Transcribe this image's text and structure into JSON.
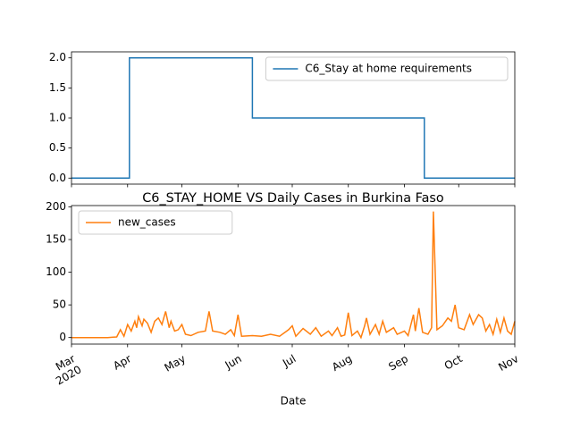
{
  "chart_data": [
    {
      "type": "line",
      "legend": "upper right",
      "xlim": [
        0,
        245
      ],
      "x": [
        0,
        32,
        32,
        100,
        100,
        195,
        195,
        245
      ],
      "ylim": [
        -0.1,
        2.1
      ],
      "yticks": [
        {
          "value": 0,
          "label": "0.0"
        },
        {
          "value": 0.5,
          "label": "0.5"
        },
        {
          "value": 1,
          "label": "1.0"
        },
        {
          "value": 1.5,
          "label": "1.5"
        },
        {
          "value": 2,
          "label": "2.0"
        }
      ],
      "series": [
        {
          "name": "C6_Stay at home requirements",
          "color": "#1f77b4",
          "values": [
            0,
            0,
            2,
            2,
            1,
            1,
            0,
            0
          ]
        }
      ]
    },
    {
      "type": "line",
      "legend": "upper left",
      "title": "C6_STAY_HOME VS Daily Cases in Burkina Faso",
      "xlabel": "Date",
      "xlim": [
        0,
        245
      ],
      "xticks": [
        {
          "value": 0,
          "label": "Mar\n2020"
        },
        {
          "value": 31,
          "label": "Apr"
        },
        {
          "value": 61,
          "label": "May"
        },
        {
          "value": 92,
          "label": "Jun"
        },
        {
          "value": 122,
          "label": "Jul"
        },
        {
          "value": 153,
          "label": "Aug"
        },
        {
          "value": 184,
          "label": "Sep"
        },
        {
          "value": 214,
          "label": "Oct"
        },
        {
          "value": 245,
          "label": "Nov"
        }
      ],
      "x": [
        0,
        10,
        20,
        25,
        27,
        29,
        31,
        33,
        35,
        36,
        37,
        39,
        40,
        42,
        44,
        46,
        48,
        50,
        52,
        54,
        55,
        57,
        59,
        61,
        63,
        66,
        70,
        74,
        76,
        78,
        82,
        85,
        88,
        90,
        92,
        94,
        100,
        105,
        110,
        115,
        120,
        122,
        124,
        128,
        132,
        135,
        138,
        142,
        144,
        147,
        149,
        151,
        153,
        155,
        158,
        160,
        162,
        163,
        165,
        168,
        170,
        172,
        174,
        178,
        180,
        184,
        186,
        189,
        190,
        192,
        194,
        197,
        199,
        200,
        202,
        205,
        208,
        210,
        212,
        214,
        217,
        220,
        222,
        225,
        227,
        229,
        231,
        233,
        235,
        237,
        239,
        241,
        243,
        245
      ],
      "ylim": [
        -10,
        202
      ],
      "yticks": [
        0,
        50,
        100,
        150,
        200
      ],
      "series": [
        {
          "name": "new_cases",
          "color": "#ff7f0e",
          "values": [
            0,
            0,
            0,
            1,
            12,
            2,
            20,
            10,
            25,
            15,
            32,
            18,
            28,
            22,
            8,
            25,
            30,
            20,
            40,
            15,
            25,
            10,
            12,
            20,
            5,
            3,
            8,
            10,
            40,
            10,
            8,
            5,
            12,
            3,
            35,
            2,
            3,
            2,
            5,
            2,
            12,
            18,
            2,
            14,
            5,
            15,
            2,
            10,
            3,
            15,
            2,
            4,
            38,
            3,
            10,
            0,
            18,
            30,
            5,
            20,
            5,
            25,
            8,
            15,
            5,
            10,
            3,
            35,
            10,
            45,
            8,
            5,
            15,
            193,
            12,
            18,
            30,
            25,
            50,
            15,
            12,
            35,
            20,
            35,
            30,
            10,
            20,
            5,
            28,
            8,
            30,
            10,
            5,
            25
          ]
        }
      ]
    }
  ]
}
